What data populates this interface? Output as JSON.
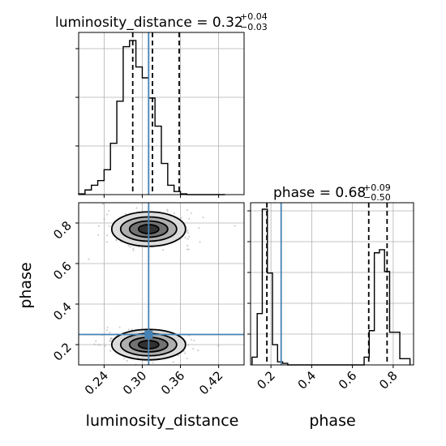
{
  "colors": {
    "background": "#ffffff",
    "grid": "#b0b0b0",
    "histogram": "#000000",
    "truth": "#4682b4",
    "quantile": "#000000",
    "scatter": "#9a9a9a",
    "density_levels": [
      "#d9d9d9",
      "#a9a9a9",
      "#6b6b6b",
      "#2a2a2a"
    ]
  },
  "chart_data": [
    {
      "type": "histogram",
      "panel": "luminosity_distance marginal",
      "title": {
        "main": "luminosity_distance = 0.32",
        "sup": "+0.04",
        "sub": "−0.03"
      },
      "xlim": [
        0.2,
        0.46
      ],
      "bins": [
        0.205,
        0.215,
        0.225,
        0.235,
        0.245,
        0.255,
        0.265,
        0.275,
        0.285,
        0.295,
        0.305,
        0.315,
        0.325,
        0.335,
        0.345,
        0.355,
        0.365,
        0.375,
        0.385,
        0.395,
        0.405,
        0.415,
        0.425
      ],
      "counts": [
        0.005,
        0.03,
        0.06,
        0.09,
        0.16,
        0.33,
        0.6,
        0.95,
        0.99,
        0.82,
        0.75,
        0.62,
        0.44,
        0.2,
        0.06,
        0.02,
        0.005,
        0.0,
        0.0,
        0.0,
        0.0,
        0.0,
        0.0
      ],
      "quantiles": [
        0.285,
        0.316,
        0.358
      ],
      "truth": 0.31
    },
    {
      "type": "histogram",
      "panel": "phase marginal",
      "title": {
        "main": "phase = 0.68",
        "sup": "+0.09",
        "sub": "−0.50"
      },
      "xlim": [
        0.1,
        0.9
      ],
      "bins": [
        0.12,
        0.145,
        0.17,
        0.195,
        0.22,
        0.245,
        0.27,
        0.295,
        0.32,
        0.345,
        0.37,
        0.395,
        0.42,
        0.445,
        0.47,
        0.495,
        0.52,
        0.545,
        0.57,
        0.595,
        0.62,
        0.645,
        0.67,
        0.695,
        0.72,
        0.745,
        0.77,
        0.795,
        0.82,
        0.845,
        0.87
      ],
      "counts": [
        0.05,
        0.33,
        1.0,
        0.59,
        0.13,
        0.02,
        0.01,
        0.0,
        0.0,
        0.0,
        0.0,
        0.0,
        0.0,
        0.0,
        0.0,
        0.0,
        0.0,
        0.0,
        0.0,
        0.0,
        0.0,
        0.0,
        0.05,
        0.22,
        0.72,
        0.74,
        0.6,
        0.21,
        0.21,
        0.04,
        0.04
      ],
      "quantiles": [
        0.18,
        0.68,
        0.77
      ],
      "truth": 0.25
    },
    {
      "type": "scatter",
      "panel": "2D density",
      "xlim": [
        0.2,
        0.46
      ],
      "ylim": [
        0.1,
        0.9
      ],
      "xlabel": "luminosity_distance",
      "ylabel": "phase",
      "xticks": [
        "0.24",
        "0.30",
        "0.36",
        "0.42"
      ],
      "xtick_values": [
        0.24,
        0.3,
        0.36,
        0.42
      ],
      "yticks": [
        "0.2",
        "0.4",
        "0.6",
        "0.8"
      ],
      "ytick_values": [
        0.2,
        0.4,
        0.6,
        0.8
      ],
      "truth": {
        "x": 0.31,
        "y": 0.25
      },
      "clusters": [
        {
          "center": [
            0.31,
            0.77
          ],
          "contour_half_widths": [
            [
              0.058,
              0.085
            ],
            [
              0.044,
              0.06
            ],
            [
              0.03,
              0.04
            ],
            [
              0.016,
              0.022
            ]
          ]
        },
        {
          "center": [
            0.31,
            0.2
          ],
          "contour_half_widths": [
            [
              0.058,
              0.075
            ],
            [
              0.044,
              0.055
            ],
            [
              0.03,
              0.036
            ],
            [
              0.016,
              0.02
            ]
          ]
        }
      ]
    },
    {
      "type": "histogram",
      "panel": "phase axis",
      "xticks": [
        "0.2",
        "0.4",
        "0.6",
        "0.8"
      ],
      "xtick_values": [
        0.2,
        0.4,
        0.6,
        0.8
      ],
      "xlabel": "phase"
    }
  ]
}
